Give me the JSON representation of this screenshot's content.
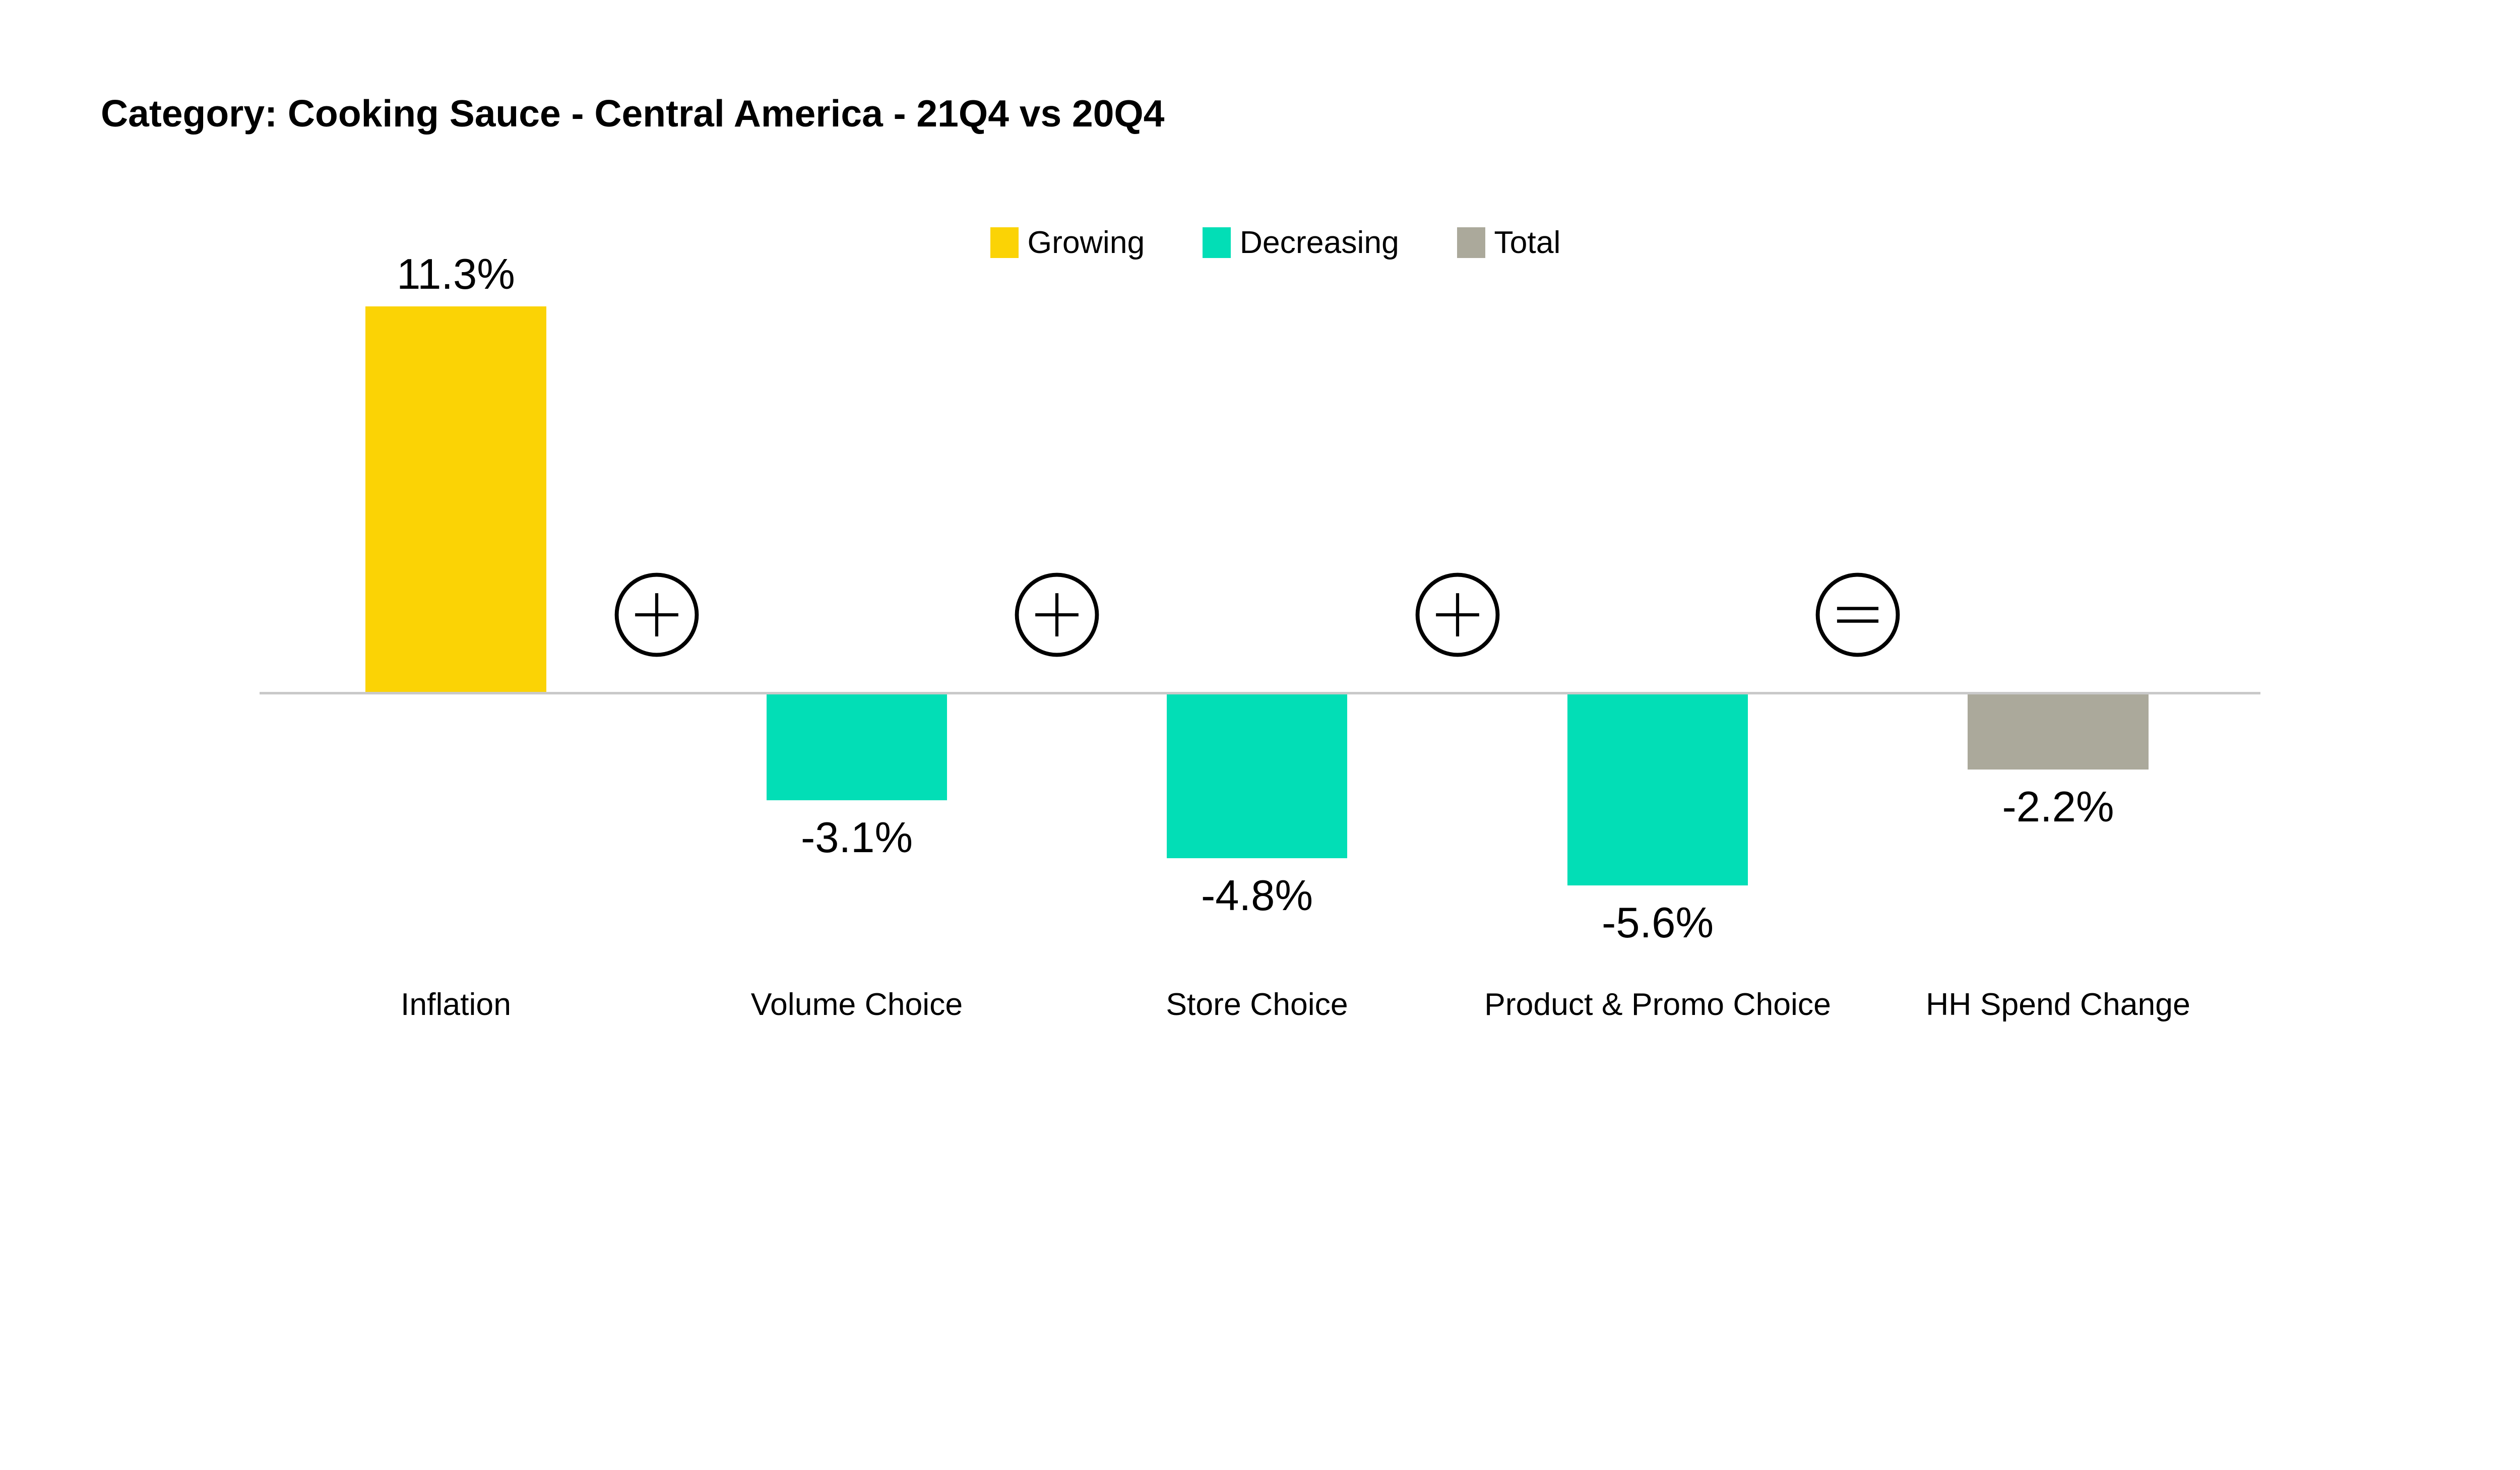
{
  "title": "Category: Cooking Sauce - Central America - 21Q4 vs 20Q4",
  "legend": {
    "items": [
      {
        "label": "Growing",
        "color": "#FBD305"
      },
      {
        "label": "Decreasing",
        "color": "#02DEB6"
      },
      {
        "label": "Total",
        "color": "#ABA99B"
      }
    ]
  },
  "chart_data": {
    "type": "bar",
    "title": "Category: Cooking Sauce - Central America - 21Q4 vs 20Q4",
    "categories": [
      "Inflation",
      "Volume Choice",
      "Store Choice",
      "Product & Promo Choice",
      "HH Spend Change"
    ],
    "values": [
      11.3,
      -3.1,
      -4.8,
      -5.6,
      -2.2
    ],
    "data_labels": [
      "11.3%",
      "-3.1%",
      "-4.8%",
      "-5.6%",
      "-2.2%"
    ],
    "bar_roles": [
      "growing",
      "decreasing",
      "decreasing",
      "decreasing",
      "total"
    ],
    "bar_colors": [
      "#FBD305",
      "#02DEB6",
      "#02DEB6",
      "#02DEB6",
      "#ABA99B"
    ],
    "operators": [
      "+",
      "+",
      "+",
      "="
    ],
    "legend_entries": [
      "Growing",
      "Decreasing",
      "Total"
    ],
    "legend_position": "top-center",
    "baseline": 0,
    "ylim": [
      -7,
      12
    ],
    "grid": false,
    "axis_line_color": "#C9C9C9",
    "text_color": "#000000",
    "background_color": "#FFFFFF"
  }
}
